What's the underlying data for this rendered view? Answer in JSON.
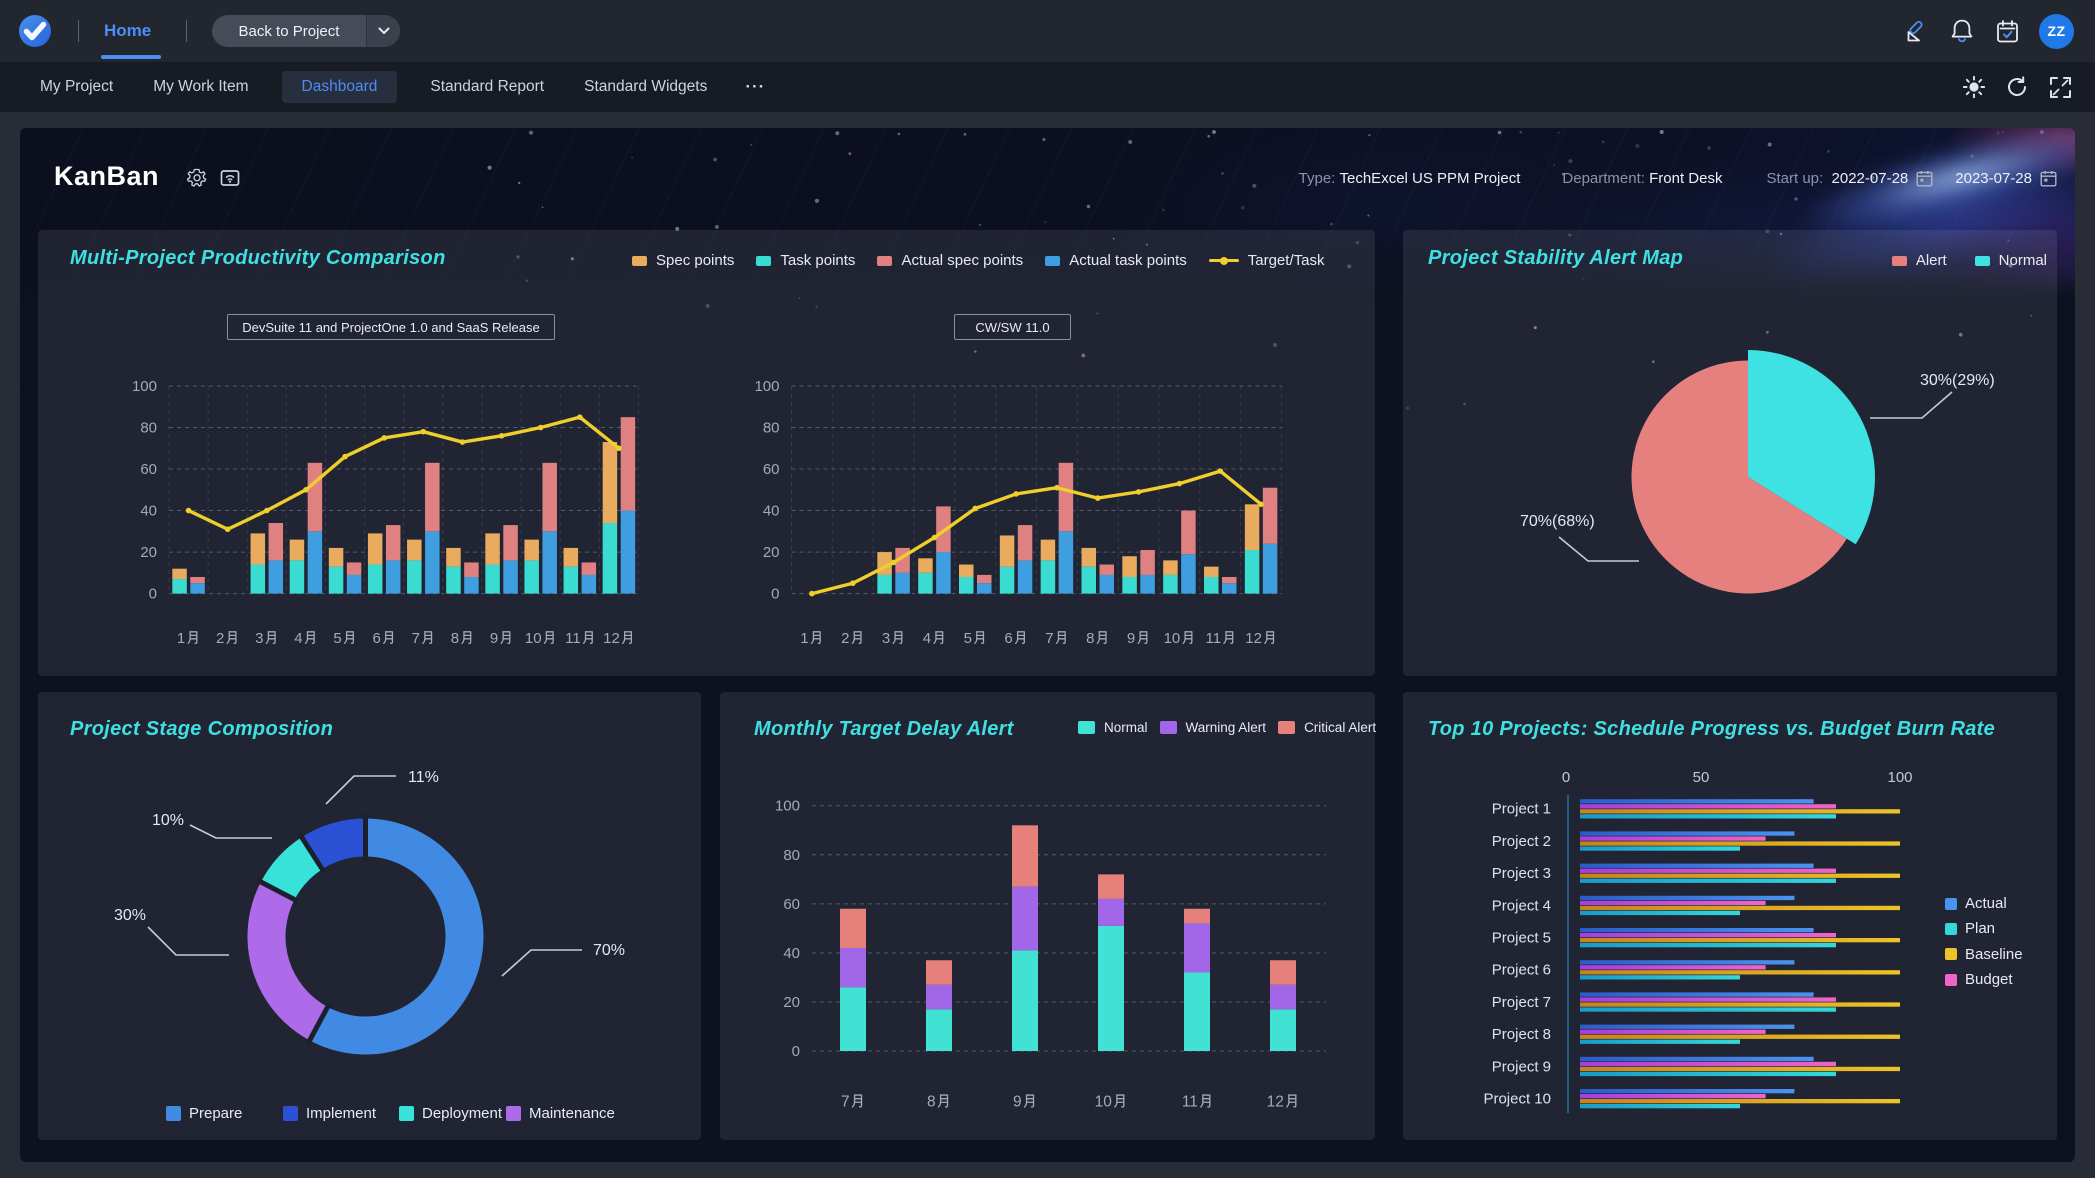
{
  "topbar": {
    "home_label": "Home",
    "back_label": "Back to Project",
    "avatar_initials": "ZZ"
  },
  "subnav": {
    "items": [
      {
        "label": "My Project",
        "active": false
      },
      {
        "label": "My Work Item",
        "active": false
      },
      {
        "label": "Dashboard",
        "active": true
      },
      {
        "label": "Standard Report",
        "active": false
      },
      {
        "label": "Standard Widgets",
        "active": false
      }
    ],
    "more": "···"
  },
  "header": {
    "title": "KanBan",
    "type_label": "Type:",
    "type_value": "TechExcel US PPM Project",
    "department_label": "Department:",
    "department_value": "Front Desk",
    "startup_label": "Start up:",
    "start_date": "2022-07-28",
    "end_date": "2023-07-28"
  },
  "chart_data": [
    {
      "id": "productivity",
      "type": "bar",
      "title": "Multi-Project Productivity Comparison",
      "ylim": [
        0,
        100
      ],
      "yticks": [
        0,
        20,
        40,
        60,
        80,
        100
      ],
      "categories": [
        "1月",
        "2月",
        "3月",
        "4月",
        "5月",
        "6月",
        "7月",
        "8月",
        "9月",
        "10月",
        "11月",
        "12月"
      ],
      "legend": [
        {
          "name": "Spec points",
          "color": "#e9ab5e",
          "shape": "rect"
        },
        {
          "name": "Task points",
          "color": "#3adcd2",
          "shape": "rect"
        },
        {
          "name": "Actual spec points",
          "color": "#e08181",
          "shape": "rect"
        },
        {
          "name": "Actual task points",
          "color": "#3f9ee0",
          "shape": "rect"
        },
        {
          "name": "Target/Task",
          "color": "#f0cf2c",
          "shape": "line"
        }
      ],
      "charts": [
        {
          "selector": "DevSuite 11 and ProjectOne 1.0 and SaaS Release",
          "series": [
            {
              "name": "Task points",
              "color": "#3adcd2",
              "values": [
                7,
                0,
                14,
                16,
                13,
                14,
                16,
                13,
                14,
                16,
                13,
                34
              ]
            },
            {
              "name": "Spec points",
              "color": "#e9ab5e",
              "values": [
                5,
                0,
                15,
                10,
                9,
                15,
                10,
                9,
                15,
                10,
                9,
                39
              ]
            },
            {
              "name": "Actual task points",
              "color": "#3f9ee0",
              "values": [
                5,
                0,
                16,
                30,
                9,
                16,
                30,
                8,
                16,
                30,
                9,
                40
              ]
            },
            {
              "name": "Actual spec points",
              "color": "#e08181",
              "values": [
                3,
                0,
                18,
                33,
                6,
                17,
                33,
                7,
                17,
                33,
                6,
                45
              ]
            }
          ],
          "target_line": {
            "name": "Target/Task",
            "color": "#f0cf2c",
            "values": [
              40,
              31,
              40,
              50,
              66,
              75,
              78,
              73,
              76,
              80,
              85,
              70
            ]
          }
        },
        {
          "selector": "CW/SW 11.0",
          "series": [
            {
              "name": "Task points",
              "color": "#3adcd2",
              "values": [
                0,
                0,
                9,
                10,
                8,
                13,
                16,
                13,
                8,
                9,
                8,
                21
              ]
            },
            {
              "name": "Spec points",
              "color": "#e9ab5e",
              "values": [
                0,
                0,
                11,
                7,
                6,
                15,
                10,
                9,
                10,
                7,
                5,
                22
              ]
            },
            {
              "name": "Actual task points",
              "color": "#3f9ee0",
              "values": [
                0,
                0,
                10,
                20,
                5,
                16,
                30,
                9,
                9,
                19,
                5,
                24
              ]
            },
            {
              "name": "Actual spec points",
              "color": "#e08181",
              "values": [
                0,
                0,
                12,
                22,
                4,
                17,
                33,
                5,
                12,
                21,
                3,
                27
              ]
            }
          ],
          "target_line": {
            "name": "Target/Task",
            "color": "#f0cf2c",
            "values": [
              0,
              5,
              15,
              27,
              41,
              48,
              51,
              46,
              49,
              53,
              59,
              43
            ]
          }
        }
      ]
    },
    {
      "id": "stability",
      "type": "pie",
      "title": "Project Stability Alert Map",
      "legend": [
        {
          "name": "Alert",
          "color": "#e5807f",
          "shape": "rect"
        },
        {
          "name": "Normal",
          "color": "#3fe2e2",
          "shape": "rect"
        }
      ],
      "slices": [
        {
          "name": "Normal",
          "value": 30,
          "label": "30%(29%)",
          "color": "#3fe2e2"
        },
        {
          "name": "Alert",
          "value": 70,
          "label": "70%(68%)",
          "color": "#e5807f"
        }
      ]
    },
    {
      "id": "stage",
      "type": "donut",
      "title": "Project Stage Composition",
      "legend": [
        {
          "name": "Prepare",
          "color": "#418ae4",
          "shape": "rect"
        },
        {
          "name": "Implement",
          "color": "#2b52d4",
          "shape": "rect"
        },
        {
          "name": "Deployment",
          "color": "#38e2d8",
          "shape": "rect"
        },
        {
          "name": "Maintenance",
          "color": "#ad6bea",
          "shape": "rect"
        }
      ],
      "slices": [
        {
          "name": "Prepare",
          "value": 70,
          "label": "70%",
          "color": "#418ae4"
        },
        {
          "name": "Maintenance",
          "value": 30,
          "label": "30%",
          "color": "#ad6bea"
        },
        {
          "name": "Deployment",
          "value": 10,
          "label": "10%",
          "color": "#38e2d8"
        },
        {
          "name": "Implement",
          "value": 11,
          "label": "11%",
          "color": "#2b52d4"
        }
      ]
    },
    {
      "id": "delay",
      "type": "stacked-bar",
      "title": "Monthly Target Delay Alert",
      "ylim": [
        0,
        100
      ],
      "yticks": [
        0,
        20,
        40,
        60,
        80,
        100
      ],
      "categories": [
        "7月",
        "8月",
        "9月",
        "10月",
        "11月",
        "12月"
      ],
      "series": [
        {
          "name": "Normal",
          "color": "#41e2d4",
          "values": [
            26,
            17,
            41,
            51,
            32,
            17
          ]
        },
        {
          "name": "Warning Alert",
          "color": "#a266e8",
          "values": [
            16,
            10,
            26,
            11,
            20,
            10
          ]
        },
        {
          "name": "Critical Alert",
          "color": "#e5807b",
          "values": [
            16,
            10,
            25,
            10,
            6,
            10
          ]
        }
      ]
    },
    {
      "id": "top10",
      "type": "hbar",
      "title": "Top 10 Projects: Schedule Progress vs. Budget Burn Rate",
      "xticks": [
        0,
        50,
        100
      ],
      "categories": [
        "Project 1",
        "Project 2",
        "Project 3",
        "Project 4",
        "Project 5",
        "Project 6",
        "Project 7",
        "Project 8",
        "Project 9",
        "Project 10"
      ],
      "series": [
        {
          "name": "Actual",
          "row": 0,
          "color_from": "#2a5cc8",
          "color_to": "#4b93f0",
          "values": [
            73,
            67,
            73,
            67,
            73,
            67,
            73,
            67,
            73,
            67
          ]
        },
        {
          "name": "Plan",
          "row": 3,
          "color_from": "#189bca",
          "color_to": "#35d8da",
          "values": [
            80,
            50,
            80,
            50,
            80,
            50,
            80,
            50,
            80,
            50
          ]
        },
        {
          "name": "Baseline",
          "row": 2,
          "color_from": "#c8821a",
          "color_to": "#ecc428",
          "values": [
            100,
            100,
            100,
            100,
            100,
            100,
            100,
            100,
            100,
            100
          ]
        },
        {
          "name": "Budget",
          "row": 1,
          "color_from": "#a33fe0",
          "color_to": "#ef64c8",
          "values": [
            80,
            58,
            80,
            58,
            80,
            58,
            80,
            58,
            80,
            58
          ]
        }
      ]
    }
  ]
}
